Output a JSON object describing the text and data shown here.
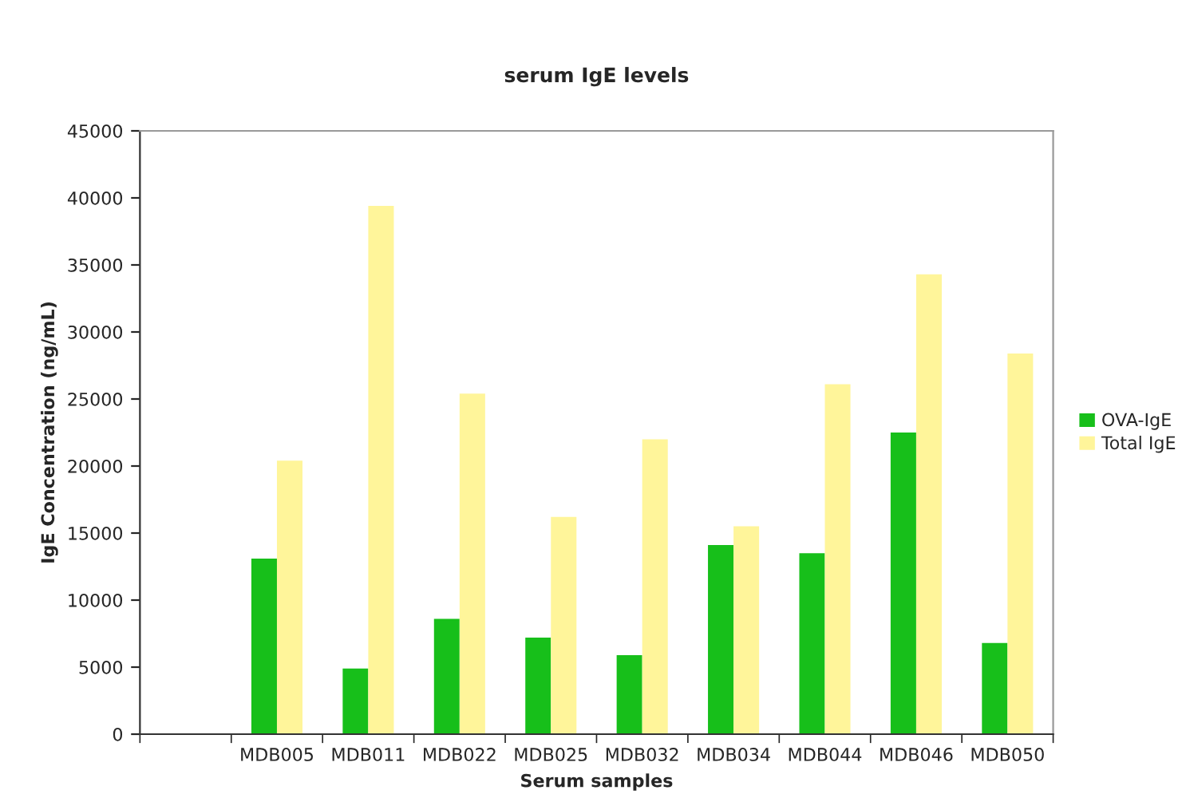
{
  "chart_data": {
    "type": "bar",
    "title": "serum IgE levels",
    "xlabel": "Serum samples",
    "ylabel": "IgE Concentration (ng/mL)",
    "categories": [
      null,
      "MDB005",
      "MDB011",
      "MDB022",
      "MDB025",
      "MDB032",
      "MDB034",
      "MDB044",
      "MDB046",
      "MDB050"
    ],
    "series": [
      {
        "name": "OVA-IgE",
        "color": "#17bf1a",
        "values": [
          null,
          13100,
          4900,
          8600,
          7200,
          5900,
          14100,
          13500,
          22500,
          6800
        ]
      },
      {
        "name": "Total IgE",
        "color": "#fff59a",
        "values": [
          null,
          20400,
          39400,
          25400,
          16200,
          22000,
          15500,
          26100,
          34300,
          28400
        ]
      }
    ],
    "ylim": [
      0,
      45000
    ],
    "yticks": [
      0,
      5000,
      10000,
      15000,
      20000,
      25000,
      30000,
      35000,
      40000,
      45000
    ],
    "grid": false,
    "legend": "right"
  }
}
